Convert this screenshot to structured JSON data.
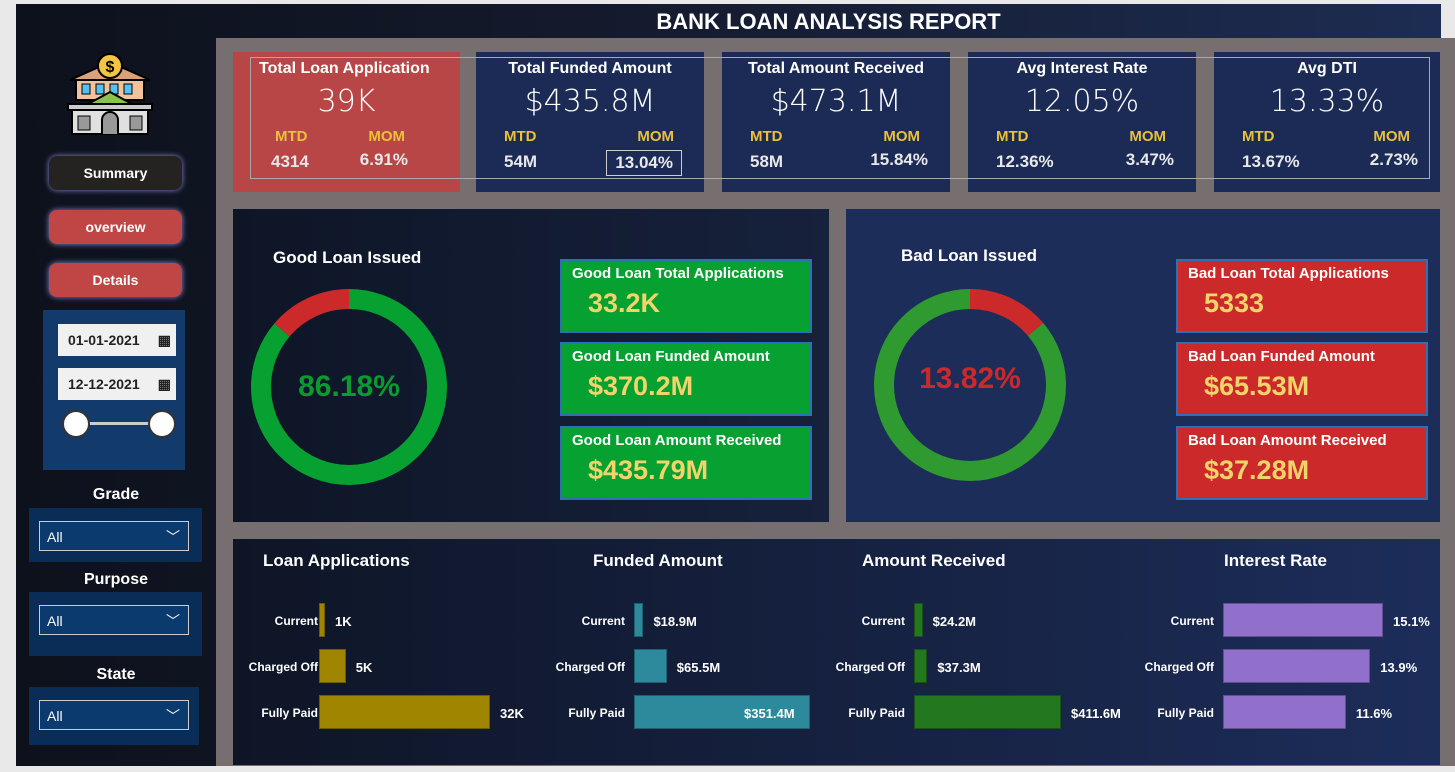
{
  "title": "BANK LOAN ANALYSIS REPORT",
  "nav": {
    "summary": "Summary",
    "overview": "overview",
    "details": "Details"
  },
  "dates": {
    "start": "01-01-2021",
    "end": "12-12-2021"
  },
  "filters": [
    {
      "label": "Grade",
      "value": "All"
    },
    {
      "label": "Purpose",
      "value": "All"
    },
    {
      "label": "State",
      "value": "All"
    }
  ],
  "kpis": [
    {
      "title": "Total Loan Application",
      "value": "39K",
      "mtd_label": "MTD",
      "mtd": "4314",
      "mom_label": "MOM",
      "mom": "6.91%"
    },
    {
      "title": "Total Funded Amount",
      "value": "$435.8M",
      "mtd_label": "MTD",
      "mtd": "54M",
      "mom_label": "MOM",
      "mom": "13.04%"
    },
    {
      "title": "Total Amount Received",
      "value": "$473.1M",
      "mtd_label": "MTD",
      "mtd": "58M",
      "mom_label": "MOM",
      "mom": "15.84%"
    },
    {
      "title": "Avg Interest Rate",
      "value": "12.05%",
      "mtd_label": "MTD",
      "mtd": "12.36%",
      "mom_label": "MOM",
      "mom": "3.47%"
    },
    {
      "title": "Avg DTI",
      "value": "13.33%",
      "mtd_label": "MTD",
      "mtd": "13.67%",
      "mom_label": "MOM",
      "mom": "2.73%"
    }
  ],
  "good": {
    "title": "Good Loan Issued",
    "percent": 86.18,
    "percent_label": "86.18%",
    "boxes": [
      {
        "title": "Good Loan Total Applications",
        "value": "33.2K"
      },
      {
        "title": "Good Loan Funded Amount",
        "value": "$370.2M"
      },
      {
        "title": "Good Loan Amount Received",
        "value": "$435.79M"
      }
    ]
  },
  "bad": {
    "title": "Bad Loan Issued",
    "percent": 13.82,
    "percent_label": "13.82%",
    "boxes": [
      {
        "title": "Bad Loan Total Applications",
        "value": "5333"
      },
      {
        "title": "Bad Loan Funded Amount",
        "value": "$65.53M"
      },
      {
        "title": "Bad Loan Amount Received",
        "value": "$37.28M"
      }
    ]
  },
  "colors": {
    "good": "#07a132",
    "bad": "#cc2a2a",
    "kpi_highlight": "#b94646",
    "panel": "#1b2b55"
  },
  "chart_data": [
    {
      "type": "bar",
      "title": "Loan Applications",
      "categories": [
        "Current",
        "Charged Off",
        "Fully Paid"
      ],
      "values": [
        1,
        5,
        32
      ],
      "labels": [
        "1K",
        "5K",
        "32K"
      ],
      "color": "#a08500"
    },
    {
      "type": "bar",
      "title": "Funded Amount",
      "categories": [
        "Current",
        "Charged Off",
        "Fully Paid"
      ],
      "values": [
        18.9,
        65.5,
        351.4
      ],
      "labels": [
        "$18.9M",
        "$65.5M",
        "$351.4M"
      ],
      "color": "#2c8a9c"
    },
    {
      "type": "bar",
      "title": "Amount Received",
      "categories": [
        "Current",
        "Charged Off",
        "Fully Paid"
      ],
      "values": [
        24.2,
        37.3,
        411.6
      ],
      "labels": [
        "$24.2M",
        "$37.3M",
        "$411.6M"
      ],
      "color": "#23771f"
    },
    {
      "type": "bar",
      "title": "Interest Rate",
      "categories": [
        "Current",
        "Charged Off",
        "Fully Paid"
      ],
      "values": [
        15.1,
        13.9,
        11.6
      ],
      "labels": [
        "15.1%",
        "13.9%",
        "11.6%"
      ],
      "color": "#9170cc"
    }
  ]
}
